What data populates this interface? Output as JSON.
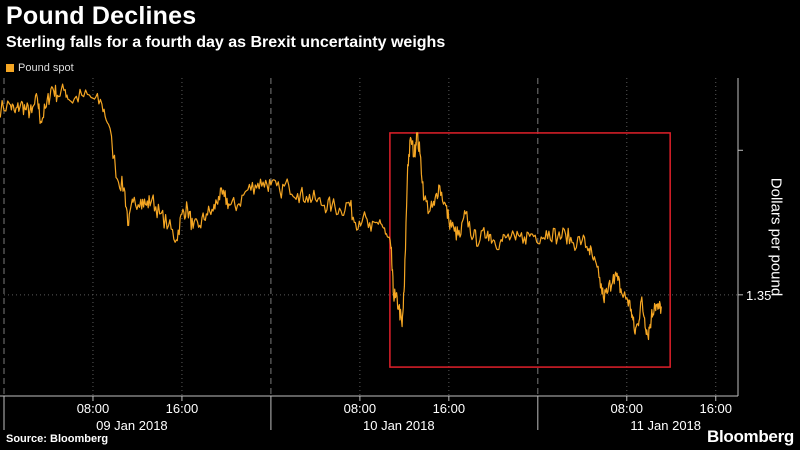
{
  "chart_data": {
    "type": "line",
    "title": "Pound Declines",
    "subtitle": "Sterling falls for a fourth day as Brexit uncertainty weighs",
    "ylabel": "Dollars per pound",
    "xlabel": "",
    "legend": {
      "placement": "top-left",
      "entries": [
        "Pound spot"
      ]
    },
    "grid": true,
    "x_unit": "hours from 09 Jan 2018 00:00",
    "xlim": [
      0,
      66
    ],
    "ylim": [
      1.3465,
      1.3575
    ],
    "y_ticks": [
      {
        "value": 1.35,
        "label": "1.35"
      }
    ],
    "x_ticks": [
      {
        "x": 8,
        "label": "08:00"
      },
      {
        "x": 16,
        "label": "16:00"
      },
      {
        "x": 32,
        "label": "08:00"
      },
      {
        "x": 40,
        "label": "16:00"
      },
      {
        "x": 56,
        "label": "08:00"
      },
      {
        "x": 64,
        "label": "16:00"
      }
    ],
    "date_labels": [
      {
        "x": 11.5,
        "label": "09 Jan 2018"
      },
      {
        "x": 35.5,
        "label": "10 Jan 2018"
      },
      {
        "x": 59.5,
        "label": "11 Jan 2018"
      }
    ],
    "day_boundaries": [
      0,
      24,
      48
    ],
    "series": [
      {
        "name": "Pound spot",
        "color": "#f5a623",
        "points": [
          [
            -0.5,
            1.3564
          ],
          [
            0.5,
            1.3566
          ],
          [
            1.0,
            1.3563
          ],
          [
            1.5,
            1.3566
          ],
          [
            2.0,
            1.3564
          ],
          [
            2.5,
            1.3563
          ],
          [
            3.0,
            1.3568
          ],
          [
            3.3,
            1.356
          ],
          [
            3.8,
            1.3565
          ],
          [
            4.3,
            1.3572
          ],
          [
            4.8,
            1.3569
          ],
          [
            5.5,
            1.3571
          ],
          [
            6.0,
            1.3567
          ],
          [
            7.0,
            1.3569
          ],
          [
            8.0,
            1.3568
          ],
          [
            8.8,
            1.3566
          ],
          [
            9.4,
            1.3559
          ],
          [
            10.2,
            1.354
          ],
          [
            10.8,
            1.3537
          ],
          [
            11.2,
            1.3524
          ],
          [
            11.6,
            1.3532
          ],
          [
            12.3,
            1.3533
          ],
          [
            12.8,
            1.3531
          ],
          [
            13.3,
            1.3533
          ],
          [
            14.0,
            1.3528
          ],
          [
            14.8,
            1.3524
          ],
          [
            15.5,
            1.3519
          ],
          [
            16.0,
            1.3528
          ],
          [
            16.5,
            1.353
          ],
          [
            17.0,
            1.3523
          ],
          [
            17.6,
            1.3524
          ],
          [
            18.2,
            1.3528
          ],
          [
            18.8,
            1.3529
          ],
          [
            19.3,
            1.3534
          ],
          [
            19.8,
            1.3534
          ],
          [
            20.3,
            1.3531
          ],
          [
            21.0,
            1.3531
          ],
          [
            21.8,
            1.3536
          ],
          [
            22.6,
            1.3538
          ],
          [
            23.3,
            1.3539
          ],
          [
            24.0,
            1.3538
          ],
          [
            24.8,
            1.3536
          ],
          [
            25.6,
            1.3538
          ],
          [
            26.4,
            1.3535
          ],
          [
            27.2,
            1.3534
          ],
          [
            28.0,
            1.3533
          ],
          [
            28.8,
            1.3531
          ],
          [
            29.5,
            1.3531
          ],
          [
            30.3,
            1.3529
          ],
          [
            31.0,
            1.3532
          ],
          [
            31.6,
            1.3525
          ],
          [
            32.3,
            1.3527
          ],
          [
            33.0,
            1.3522
          ],
          [
            33.8,
            1.3526
          ],
          [
            34.3,
            1.3521
          ],
          [
            34.8,
            1.3516
          ],
          [
            35.0,
            1.3501
          ],
          [
            35.2,
            1.3499
          ],
          [
            35.5,
            1.3496
          ],
          [
            35.8,
            1.3489
          ],
          [
            36.0,
            1.3503
          ],
          [
            36.3,
            1.3545
          ],
          [
            36.6,
            1.3554
          ],
          [
            36.9,
            1.3548
          ],
          [
            37.1,
            1.3556
          ],
          [
            37.4,
            1.3549
          ],
          [
            37.8,
            1.3533
          ],
          [
            38.3,
            1.3529
          ],
          [
            38.7,
            1.3531
          ],
          [
            39.1,
            1.3538
          ],
          [
            39.6,
            1.3532
          ],
          [
            40.0,
            1.3526
          ],
          [
            40.5,
            1.3522
          ],
          [
            41.0,
            1.352
          ],
          [
            41.5,
            1.3528
          ],
          [
            42.2,
            1.352
          ],
          [
            42.8,
            1.3519
          ],
          [
            43.5,
            1.3522
          ],
          [
            44.0,
            1.3519
          ],
          [
            44.6,
            1.3518
          ],
          [
            45.2,
            1.352
          ],
          [
            46.0,
            1.3519
          ],
          [
            46.8,
            1.352
          ],
          [
            47.5,
            1.3521
          ],
          [
            48.3,
            1.352
          ],
          [
            49.0,
            1.3522
          ],
          [
            49.8,
            1.352
          ],
          [
            50.5,
            1.3521
          ],
          [
            51.2,
            1.3518
          ],
          [
            52.0,
            1.3519
          ],
          [
            52.6,
            1.3516
          ],
          [
            53.0,
            1.3512
          ],
          [
            53.5,
            1.3506
          ],
          [
            53.9,
            1.3499
          ],
          [
            54.3,
            1.3501
          ],
          [
            54.8,
            1.3507
          ],
          [
            55.2,
            1.3505
          ],
          [
            55.6,
            1.35
          ],
          [
            56.0,
            1.3499
          ],
          [
            56.4,
            1.3495
          ],
          [
            56.7,
            1.3487
          ],
          [
            57.0,
            1.349
          ],
          [
            57.3,
            1.3498
          ],
          [
            57.6,
            1.3492
          ],
          [
            57.9,
            1.3486
          ],
          [
            58.2,
            1.3492
          ],
          [
            58.5,
            1.3497
          ],
          [
            58.8,
            1.3495
          ],
          [
            59.1,
            1.3496
          ]
        ]
      }
    ],
    "annotations": [
      {
        "type": "highlight-box",
        "x_range": [
          34.7,
          59.9
        ],
        "y_range": [
          1.3475,
          1.3556
        ],
        "color": "#e0202a"
      }
    ]
  },
  "footer": {
    "source": "Source: Bloomberg",
    "brand": "Bloomberg"
  }
}
